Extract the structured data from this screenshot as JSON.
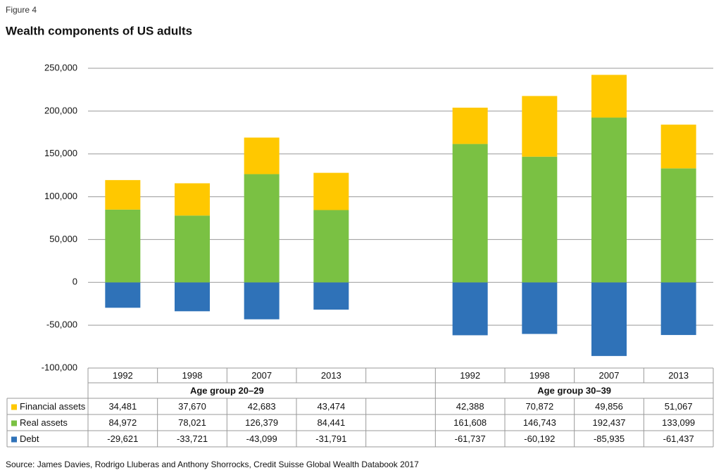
{
  "chart_data": {
    "type": "bar",
    "stacked": true,
    "figure_label": "Figure 4",
    "title": "Wealth components of US adults",
    "source": "Source: James Davies, Rodrigo Lluberas and Anthony Shorrocks, Credit Suisse Global Wealth Databook 2017",
    "categories": [
      "1992",
      "1998",
      "2007",
      "2013",
      null,
      "1992",
      "1998",
      "2007",
      "2013"
    ],
    "groups": [
      "Age group 20–29",
      "Age group 30–39"
    ],
    "series": [
      {
        "name": "Financial assets",
        "color": "#FFC800",
        "values": [
          34481,
          37670,
          42683,
          43474,
          null,
          42388,
          70872,
          49856,
          51067
        ],
        "value_labels": [
          "34,481",
          "37,670",
          "42,683",
          "43,474",
          null,
          "42,388",
          "70,872",
          "49,856",
          "51,067"
        ]
      },
      {
        "name": "Real assets",
        "color": "#7AC143",
        "values": [
          84972,
          78021,
          126379,
          84441,
          null,
          161608,
          146743,
          192437,
          133099
        ],
        "value_labels": [
          "84,972",
          "78,021",
          "126,379",
          "84,441",
          null,
          "161,608",
          "146,743",
          "192,437",
          "133,099"
        ]
      },
      {
        "name": "Debt",
        "color": "#2F72B8",
        "values": [
          -29621,
          -33721,
          -43099,
          -31791,
          null,
          -61737,
          -60192,
          -85935,
          -61437
        ],
        "value_labels": [
          "-29,621",
          "-33,721",
          "-43,099",
          "-31,791",
          null,
          "-61,737",
          "-60,192",
          "-85,935",
          "-61,437"
        ]
      }
    ],
    "ylim": [
      -100000,
      250000
    ],
    "yticks": [
      {
        "value": -100000,
        "label": "-100,000"
      },
      {
        "value": -50000,
        "label": "-50,000"
      },
      0,
      {
        "value": 50000,
        "label": "50,000"
      },
      {
        "value": 100000,
        "label": "100,000"
      },
      {
        "value": 150000,
        "label": "150,000"
      },
      {
        "value": 200000,
        "label": "200,000"
      },
      {
        "value": 250000,
        "label": "250,000"
      }
    ],
    "grid": true
  }
}
